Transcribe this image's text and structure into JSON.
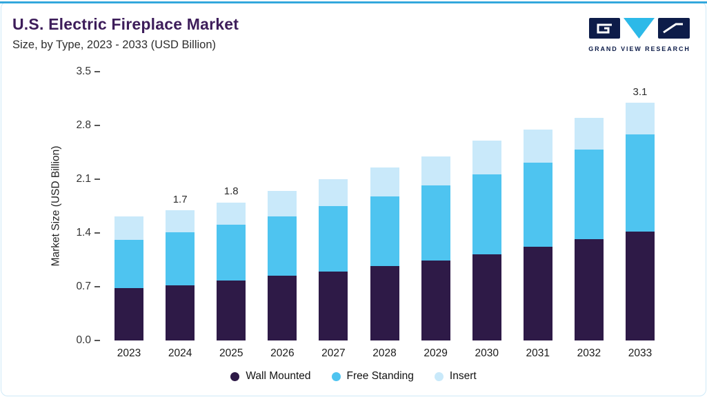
{
  "header": {
    "title": "U.S. Electric Fireplace Market",
    "subtitle": "Size, by Type, 2023 - 2033 (USD Billion)"
  },
  "logo": {
    "text": "GRAND VIEW RESEARCH"
  },
  "colors": {
    "accent_top_line": "#33a7dc",
    "card_border": "#cfe9f7",
    "title_purple": "#3d1d5a",
    "logo_navy": "#0d1c49",
    "logo_cyan": "#2cb9e8"
  },
  "chart_data": {
    "type": "bar",
    "stacked": true,
    "title": "U.S. Electric Fireplace Market Size, by Type, 2023 - 2033 (USD Billion)",
    "xlabel": "",
    "ylabel": "Market Size (USD Billion)",
    "ylim": [
      0,
      3.5
    ],
    "ytick_labels": [
      "0.0",
      "0.7",
      "1.4",
      "2.1",
      "2.8",
      "3.5"
    ],
    "grid": false,
    "legend_position": "bottom",
    "categories": [
      "2023",
      "2024",
      "2025",
      "2026",
      "2027",
      "2028",
      "2029",
      "2030",
      "2031",
      "2032",
      "2033"
    ],
    "series": [
      {
        "name": "Wall Mounted",
        "color": "#2e1a47",
        "values": [
          0.68,
          0.72,
          0.78,
          0.84,
          0.9,
          0.97,
          1.04,
          1.12,
          1.22,
          1.32,
          1.42
        ]
      },
      {
        "name": "Free Standing",
        "color": "#4ec4f0",
        "values": [
          0.63,
          0.69,
          0.73,
          0.78,
          0.85,
          0.91,
          0.98,
          1.04,
          1.1,
          1.17,
          1.26
        ]
      },
      {
        "name": "Insert",
        "color": "#c9e9fa",
        "values": [
          0.31,
          0.29,
          0.29,
          0.33,
          0.35,
          0.37,
          0.38,
          0.44,
          0.43,
          0.41,
          0.42
        ]
      }
    ],
    "totals": [
      1.62,
      1.7,
      1.8,
      1.95,
      2.1,
      2.25,
      2.4,
      2.6,
      2.75,
      2.9,
      3.1
    ],
    "annotations": {
      "2024": "1.7",
      "2025": "1.8",
      "2033": "3.1"
    }
  }
}
